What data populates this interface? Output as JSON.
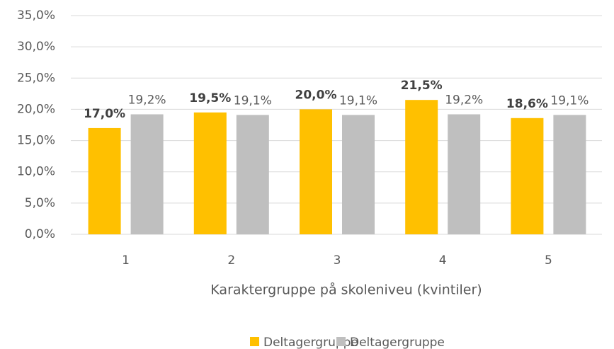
{
  "chart_data": {
    "type": "bar",
    "categories": [
      "1",
      "2",
      "3",
      "4",
      "5"
    ],
    "series": [
      {
        "name": "Deltagergruppe",
        "color": "#FFC000",
        "values": [
          17.0,
          19.5,
          20.0,
          21.5,
          18.6
        ],
        "value_labels": [
          "17,0%",
          "19,5%",
          "20,0%",
          "21,5%",
          "18,6%"
        ],
        "label_bold": true
      },
      {
        "name": "Deltagergruppe",
        "color": "#BFBFBF",
        "values": [
          19.2,
          19.1,
          19.1,
          19.2,
          19.1
        ],
        "value_labels": [
          "19,2%",
          "19,1%",
          "19,1%",
          "19,2%",
          "19,1%"
        ],
        "label_bold": false
      }
    ],
    "xlabel": "Karaktergruppe på skoleniveu (kvintiler)",
    "ylim": [
      0,
      35
    ],
    "yticks": [
      {
        "value": 0,
        "label": "0,0%"
      },
      {
        "value": 5,
        "label": "5,0%"
      },
      {
        "value": 10,
        "label": "10,0%"
      },
      {
        "value": 15,
        "label": "15,0%"
      },
      {
        "value": 20,
        "label": "20,0%"
      },
      {
        "value": 25,
        "label": "25,0%"
      },
      {
        "value": 30,
        "label": "30,0%"
      },
      {
        "value": 35,
        "label": "35,0%"
      }
    ],
    "grid": true,
    "legend": "bottom"
  }
}
